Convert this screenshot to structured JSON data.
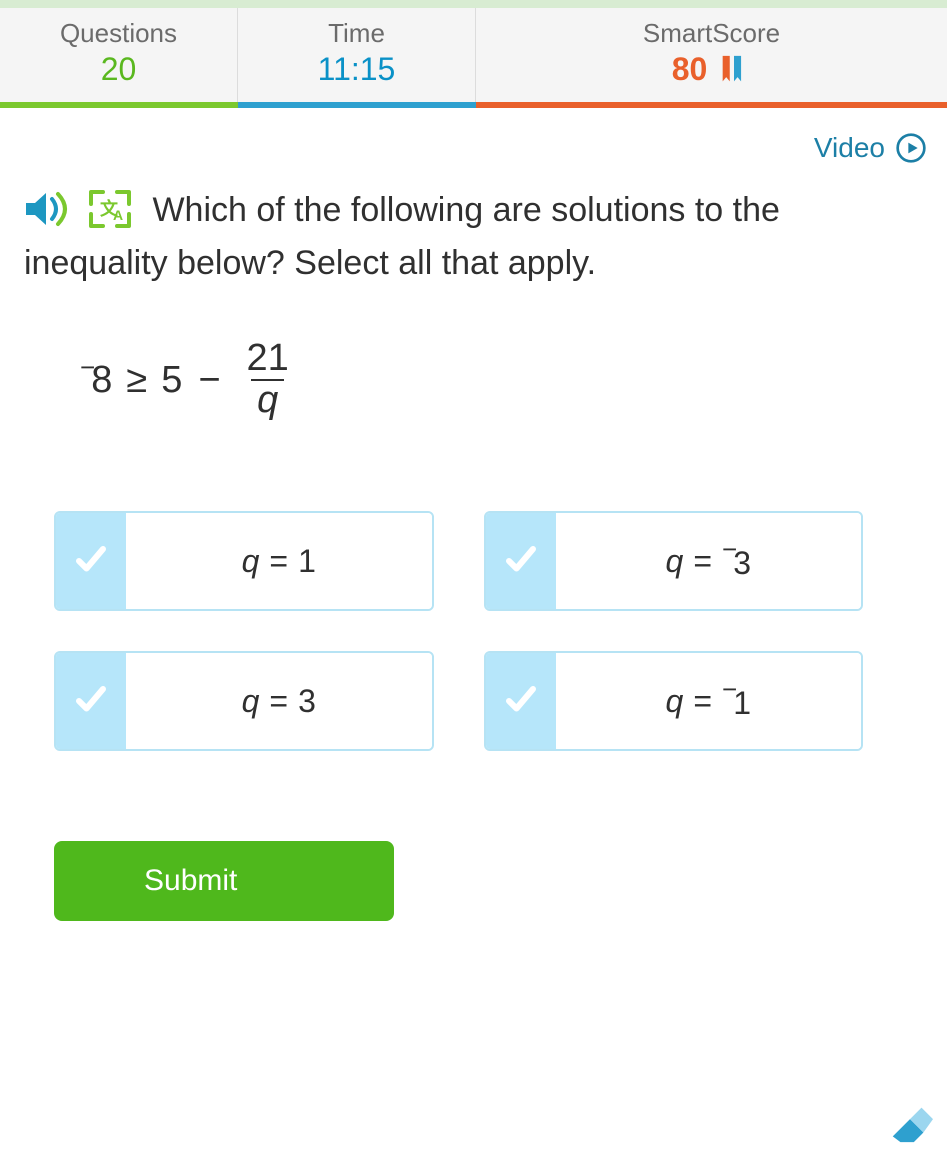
{
  "colors": {
    "green": "#7bc82e",
    "blue": "#2ea0cf",
    "orange": "#e9602b",
    "link_blue": "#1c7fa6",
    "option_border": "#b6e3f4",
    "option_check_bg": "#b6e6fa",
    "submit_green": "#4fb81c",
    "text": "#303030",
    "stat_label": "#6b6b6b",
    "page_bg": "#ffffff",
    "stats_bg": "#f5f5f5"
  },
  "stats": {
    "questions_label": "Questions",
    "questions_value": "20",
    "time_label": "Time",
    "time_value": "11:15",
    "score_label": "SmartScore",
    "score_value": "80"
  },
  "video_label": "Video",
  "question_text": "Which of the following are solutions to the inequality below? Select all that apply.",
  "inequality": {
    "lhs_neg": "−",
    "lhs_num": "8",
    "op": "≥",
    "rhs_a": "5",
    "minus": "−",
    "frac_num": "21",
    "frac_den": "q"
  },
  "options": [
    {
      "var": "q",
      "value": "1",
      "neg": false
    },
    {
      "var": "q",
      "value": "3",
      "neg": true
    },
    {
      "var": "q",
      "value": "3",
      "neg": false
    },
    {
      "var": "q",
      "value": "1",
      "neg": true
    }
  ],
  "submit_label": "Submit"
}
